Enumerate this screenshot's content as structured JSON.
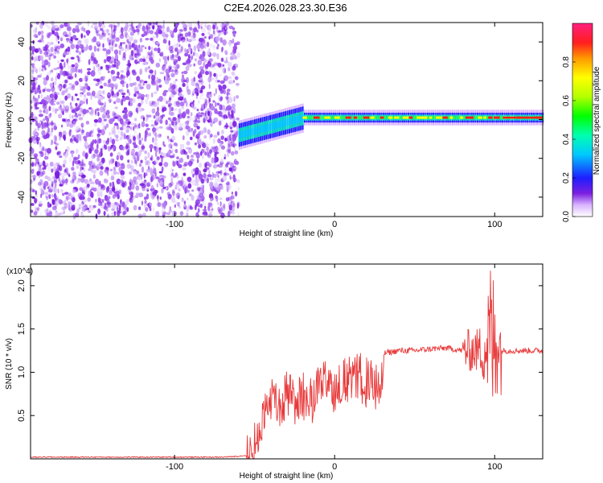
{
  "title": "C2E4.2026.028.23.30.E36",
  "colors": {
    "trace": "#e8393a",
    "speckle": "#7b1fe0",
    "background": "#ffffff"
  },
  "chart_data": [
    {
      "type": "heatmap",
      "title": "C2E4.2026.028.23.30.E36",
      "xlabel": "Height of straight line (km)",
      "ylabel": "Frequency (Hz)",
      "xlim": [
        -190,
        130
      ],
      "ylim": [
        -50,
        50
      ],
      "x_ticks": [
        "-100",
        "0",
        "100"
      ],
      "y_ticks": [
        "40",
        "20",
        "0",
        "-20",
        "-40"
      ],
      "colorbar": {
        "label": "Normalized spectral amplitude",
        "range": [
          0,
          1
        ],
        "ticks": [
          "0.0",
          "0.2",
          "0.4",
          "0.6",
          "0.8"
        ]
      },
      "regions": [
        {
          "x_range": [
            -190,
            -60
          ],
          "frequency_range": [
            -50,
            50
          ],
          "amplitude": "low (noise)"
        },
        {
          "x_range": [
            -60,
            130
          ],
          "center_frequency_hz": 0,
          "amplitude": "high (narrow band)"
        }
      ]
    },
    {
      "type": "line",
      "xlabel": "Height of straight line (km)",
      "ylabel": "SNR (10 * v/v)",
      "multiplier": "(x10^4)",
      "xlim": [
        -190,
        130
      ],
      "ylim": [
        0,
        2.25
      ],
      "x_ticks": [
        "-100",
        "0",
        "100"
      ],
      "y_ticks": [
        "0.5",
        "1.0",
        "1.5",
        "2.0"
      ],
      "series": [
        {
          "x": [
            -190,
            -150,
            -100,
            -70,
            -60,
            -55,
            -50,
            -45,
            -40,
            -35,
            -30,
            -25,
            -20,
            -15,
            -10,
            -5,
            0,
            5,
            10,
            15,
            20,
            25,
            28,
            30,
            31,
            40,
            50,
            60,
            70,
            80,
            85,
            90,
            95,
            97,
            100,
            102,
            103,
            110,
            120,
            130
          ],
          "values": [
            0.02,
            0.02,
            0.02,
            0.02,
            0.03,
            0.04,
            0.25,
            0.5,
            0.8,
            0.6,
            0.85,
            0.7,
            0.8,
            0.75,
            0.9,
            0.9,
            0.9,
            0.95,
            0.95,
            1.0,
            0.95,
            0.9,
            0.88,
            0.9,
            1.22,
            1.25,
            1.25,
            1.27,
            1.28,
            1.25,
            1.25,
            1.25,
            1.3,
            1.45,
            1.2,
            1.6,
            1.25,
            1.25,
            1.25,
            1.25
          ]
        }
      ]
    }
  ]
}
